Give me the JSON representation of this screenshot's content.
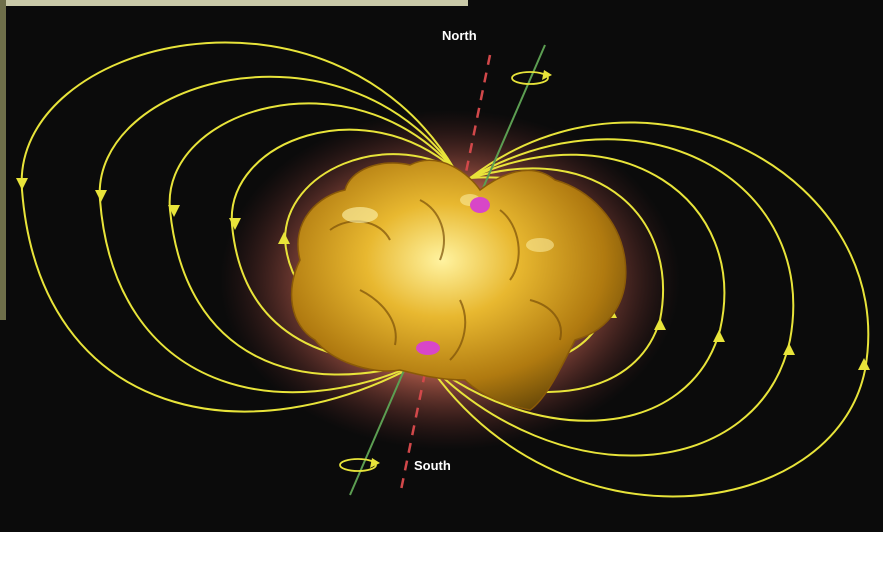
{
  "labels": {
    "north": "North",
    "south": "South"
  },
  "colors": {
    "background": "#0b0b0b",
    "field_line": "#e8e43a",
    "rotation_axis": "#5c9e52",
    "magnetic_axis": "#d2484a",
    "gold": "#d9a520",
    "halo": "#e07a5a",
    "pole_spot": "#d846c8"
  },
  "icons": {
    "field_arrow": "arrowhead-icon",
    "rotation": "rotation-arrow-icon"
  }
}
